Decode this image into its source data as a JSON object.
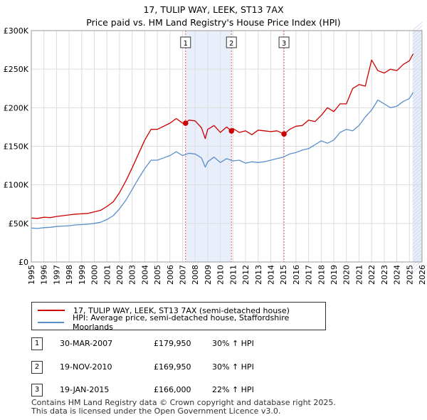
{
  "title_line1": "17, TULIP WAY, LEEK, ST13 7AX",
  "title_line2": "Price paid vs. HM Land Registry's House Price Index (HPI)",
  "legend": {
    "property": "17, TULIP WAY, LEEK, ST13 7AX (semi-detached house)",
    "hpi": "HPI: Average price, semi-detached house, Staffordshire Moorlands"
  },
  "sales": [
    {
      "num": "1",
      "date": "30-MAR-2007",
      "price": "£179,950",
      "hpi": "30% ↑ HPI"
    },
    {
      "num": "2",
      "date": "19-NOV-2010",
      "price": "£169,950",
      "hpi": "30% ↑ HPI"
    },
    {
      "num": "3",
      "date": "19-JAN-2015",
      "price": "£166,000",
      "hpi": "22% ↑ HPI"
    }
  ],
  "footer": {
    "line1": "Contains HM Land Registry data © Crown copyright and database right 2025.",
    "line2": "This data is licensed under the Open Government Licence v3.0."
  },
  "colors": {
    "property": "#cc0000",
    "hpi": "#5b8fcc",
    "shade": "#e8eefa",
    "grid": "#dddddd"
  },
  "chart_data": {
    "type": "line",
    "title": "17, TULIP WAY, LEEK, ST13 7AX — Price paid vs. HM Land Registry's House Price Index (HPI)",
    "xlabel": "",
    "ylabel": "",
    "xlim": [
      1995,
      2026
    ],
    "ylim": [
      0,
      300000
    ],
    "y_ticks": [
      {
        "value": 0,
        "label": "£0"
      },
      {
        "value": 50000,
        "label": "£50K"
      },
      {
        "value": 100000,
        "label": "£100K"
      },
      {
        "value": 150000,
        "label": "£150K"
      },
      {
        "value": 200000,
        "label": "£200K"
      },
      {
        "value": 250000,
        "label": "£250K"
      },
      {
        "value": 300000,
        "label": "£300K"
      }
    ],
    "x_ticks": [
      1995,
      1996,
      1997,
      1998,
      1999,
      2000,
      2001,
      2002,
      2003,
      2004,
      2005,
      2006,
      2007,
      2008,
      2009,
      2010,
      2011,
      2012,
      2013,
      2014,
      2015,
      2016,
      2017,
      2018,
      2019,
      2020,
      2021,
      2022,
      2023,
      2024,
      2025,
      2026
    ],
    "shaded_ranges": [
      [
        2007.24,
        2010.88
      ],
      [
        2025.25,
        2026
      ]
    ],
    "markers": [
      {
        "label": "1",
        "x": 2007.24,
        "y": 179950
      },
      {
        "label": "2",
        "x": 2010.88,
        "y": 169950
      },
      {
        "label": "3",
        "x": 2015.05,
        "y": 166000
      }
    ],
    "series": [
      {
        "name": "17, TULIP WAY, LEEK, ST13 7AX (semi-detached house)",
        "x": [
          1995,
          1995.5,
          1996,
          1996.5,
          1997,
          1997.5,
          1998,
          1998.5,
          1999,
          1999.5,
          2000,
          2000.5,
          2001,
          2001.5,
          2002,
          2002.5,
          2003,
          2003.5,
          2004,
          2004.5,
          2005,
          2005.5,
          2006,
          2006.5,
          2007,
          2007.24,
          2007.5,
          2008,
          2008.5,
          2008.8,
          2009,
          2009.5,
          2010,
          2010.5,
          2010.88,
          2011,
          2011.5,
          2012,
          2012.5,
          2013,
          2013.5,
          2014,
          2014.5,
          2015.05,
          2015.5,
          2016,
          2016.5,
          2017,
          2017.5,
          2018,
          2018.5,
          2019,
          2019.5,
          2020,
          2020.5,
          2021,
          2021.5,
          2022,
          2022.5,
          2023,
          2023.5,
          2024,
          2024.5,
          2025,
          2025.3
        ],
        "y": [
          57000,
          56500,
          58000,
          57500,
          59000,
          60000,
          61000,
          62000,
          62500,
          63000,
          65000,
          67000,
          72000,
          78000,
          90000,
          105000,
          122000,
          140000,
          158000,
          172000,
          172000,
          176000,
          180000,
          186000,
          180000,
          179950,
          184000,
          183000,
          174000,
          160000,
          172000,
          177000,
          168000,
          175000,
          169950,
          173000,
          168000,
          170000,
          165000,
          171000,
          170000,
          169000,
          170000,
          166000,
          172000,
          176000,
          177000,
          184000,
          182000,
          190000,
          200000,
          195000,
          205000,
          205000,
          225000,
          230000,
          228000,
          262000,
          248000,
          245000,
          250000,
          248000,
          256000,
          261000,
          270000
        ]
      },
      {
        "name": "HPI: Average price, semi-detached house, Staffordshire Moorlands",
        "x": [
          1995,
          1995.5,
          1996,
          1996.5,
          1997,
          1997.5,
          1998,
          1998.5,
          1999,
          1999.5,
          2000,
          2000.5,
          2001,
          2001.5,
          2002,
          2002.5,
          2003,
          2003.5,
          2004,
          2004.5,
          2005,
          2005.5,
          2006,
          2006.5,
          2007,
          2007.5,
          2008,
          2008.5,
          2008.8,
          2009,
          2009.5,
          2010,
          2010.5,
          2011,
          2011.5,
          2012,
          2012.5,
          2013,
          2013.5,
          2014,
          2014.5,
          2015,
          2015.5,
          2016,
          2016.5,
          2017,
          2017.5,
          2018,
          2018.5,
          2019,
          2019.5,
          2020,
          2020.5,
          2021,
          2021.5,
          2022,
          2022.5,
          2023,
          2023.5,
          2024,
          2024.5,
          2025,
          2025.3
        ],
        "y": [
          44000,
          43500,
          44500,
          45000,
          46000,
          46500,
          47000,
          48000,
          48500,
          49000,
          50000,
          51500,
          55000,
          60000,
          69000,
          80000,
          94000,
          108000,
          121000,
          132000,
          132000,
          135000,
          138000,
          143000,
          138000,
          141000,
          140000,
          135000,
          123000,
          130000,
          136000,
          129000,
          134000,
          131000,
          132000,
          128000,
          130000,
          129000,
          130000,
          132000,
          134000,
          136000,
          140000,
          142000,
          145000,
          147000,
          152000,
          157000,
          154000,
          158000,
          168000,
          172000,
          170000,
          177000,
          188000,
          197000,
          210000,
          205000,
          200000,
          202000,
          208000,
          212000,
          220000
        ]
      }
    ]
  }
}
